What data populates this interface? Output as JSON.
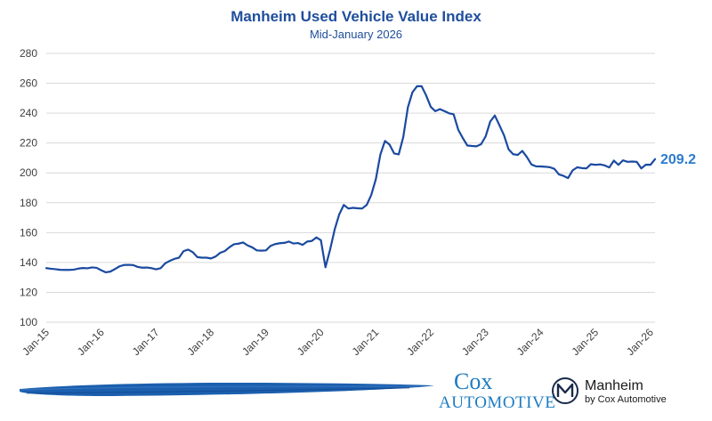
{
  "chart_data": {
    "type": "line",
    "title": "Manheim Used Vehicle Value Index",
    "subtitle": "Mid-January 2026",
    "xlabel": "",
    "ylabel": "",
    "ylim": [
      100,
      280
    ],
    "yticks": [
      "100",
      "120",
      "140",
      "160",
      "180",
      "200",
      "220",
      "240",
      "260",
      "280"
    ],
    "xtick_labels": [
      "Jan-15",
      "Jan-16",
      "Jan-17",
      "Jan-18",
      "Jan-19",
      "Jan-20",
      "Jan-21",
      "Jan-22",
      "Jan-23",
      "Jan-24",
      "Jan-25",
      "Jan-26"
    ],
    "grid": true,
    "series_color": "#1b4aa0",
    "end_label_color": "#2b7bd0",
    "end_label": "209.2",
    "series": [
      {
        "values": [
          136.2,
          135.8,
          135.5,
          135.1,
          135.0,
          135.0,
          135.2,
          135.9,
          136.3,
          136.1,
          136.7,
          136.4,
          134.8,
          133.4,
          133.9,
          135.6,
          137.4,
          138.3,
          138.4,
          138.2,
          137.0,
          136.5,
          136.6,
          136.2,
          135.4,
          136.2,
          139.5,
          141.1,
          142.4,
          143.2,
          147.6,
          148.6,
          146.9,
          143.6,
          143.2,
          143.2,
          142.7,
          144.0,
          146.5,
          147.6,
          150.2,
          152.2,
          152.6,
          153.4,
          151.4,
          150.1,
          148.1,
          147.9,
          148.1,
          151.1,
          152.3,
          152.9,
          153.1,
          154.0,
          152.7,
          153.0,
          151.8,
          154.0,
          154.4,
          156.8,
          154.9,
          136.8,
          148.5,
          162.0,
          172.2,
          178.5,
          176.1,
          176.6,
          176.3,
          176.1,
          178.5,
          185.2,
          195.8,
          212.4,
          221.4,
          218.9,
          213.0,
          212.4,
          224.1,
          243.9,
          254.0,
          258.0,
          258.0,
          251.8,
          244.2,
          241.3,
          242.7,
          241.3,
          239.9,
          239.2,
          228.9,
          223.3,
          218.3,
          218.0,
          217.8,
          219.2,
          224.5,
          234.4,
          238.4,
          231.9,
          225.2,
          215.8,
          212.5,
          212.0,
          214.7,
          210.6,
          205.6,
          204.4,
          204.3,
          204.1,
          203.8,
          202.7,
          199.0,
          198.0,
          196.5,
          201.7,
          203.7,
          203.2,
          203.0,
          205.8,
          205.4,
          205.7,
          205.0,
          203.6,
          208.2,
          205.4,
          208.4,
          207.4,
          207.6,
          207.4,
          203.0,
          205.5,
          205.4,
          209.2
        ]
      }
    ]
  },
  "logos": {
    "cox": {
      "line1": "Cox",
      "line2": "Automotive",
      "color": "#1e7cc0"
    },
    "manheim": {
      "name": "Manheim",
      "tagline": "by Cox Automotive",
      "icon": "manheim-m-circle-icon"
    }
  },
  "brush_color": "#1b5fae"
}
